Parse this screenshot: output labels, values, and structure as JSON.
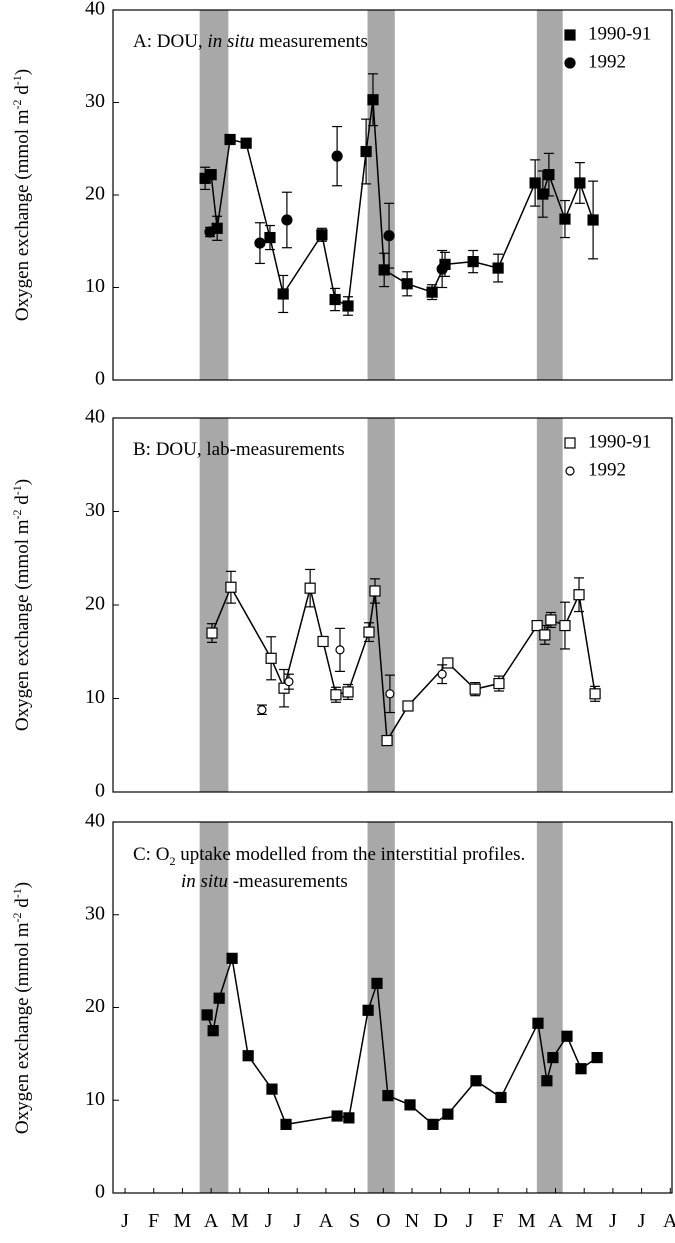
{
  "chart_data": [
    {
      "type": "line",
      "title": [
        "A: DOU, ",
        "in situ",
        " measurements"
      ],
      "y_label": [
        "Oxygen exchange (mmol m",
        "-2",
        " d",
        "-1",
        ")"
      ],
      "xlim": [
        -0.42,
        19.06
      ],
      "ylim": [
        0,
        40
      ],
      "yticks": [
        0,
        10,
        20,
        30,
        40
      ],
      "shaded_spans": [
        [
          2.6,
          3.6
        ],
        [
          8.45,
          9.4
        ],
        [
          14.35,
          15.25
        ]
      ],
      "shade_color": "#a8a8a8",
      "legend": "upper right",
      "series": [
        {
          "name": "1990-91",
          "color": "#000000",
          "marker": "square",
          "filled": true,
          "line": true,
          "x": [
            2.79,
            3.0,
            3.21,
            3.66,
            4.22,
            5.05,
            5.51,
            6.86,
            7.32,
            7.77,
            8.4,
            8.64,
            9.03,
            9.83,
            10.7,
            11.15,
            12.13,
            13.0,
            14.29,
            14.56,
            14.77,
            15.33,
            15.85,
            16.31
          ],
          "values": [
            21.8,
            22.2,
            16.4,
            26.0,
            25.6,
            15.4,
            9.3,
            15.7,
            8.7,
            8.0,
            24.7,
            30.3,
            11.9,
            10.4,
            9.5,
            12.5,
            12.8,
            12.1,
            21.3,
            20.1,
            22.2,
            17.4,
            21.3,
            17.3
          ],
          "errors": [
            1.2,
            0.5,
            1.3,
            0.3,
            0.3,
            1.3,
            2.0,
            0.7,
            1.2,
            1.0,
            3.5,
            2.8,
            1.8,
            1.3,
            0.8,
            1.3,
            1.2,
            1.5,
            2.5,
            2.5,
            2.3,
            2.0,
            2.2,
            4.2
          ]
        },
        {
          "name": "1992",
          "color": "#000000",
          "marker": "circle",
          "filled": true,
          "line": false,
          "x": [
            2.96,
            4.7,
            5.64,
            7.39,
            9.2,
            11.05
          ],
          "values": [
            16.0,
            14.8,
            17.3,
            24.2,
            15.6,
            12.0
          ],
          "errors": [
            0.5,
            2.2,
            3.0,
            3.2,
            3.5,
            2.0
          ]
        }
      ]
    },
    {
      "type": "line",
      "title": [
        "B: DOU, lab-measurements"
      ],
      "y_label": [
        "Oxygen exchange (mmol m",
        "-2",
        " d",
        "-1",
        ")"
      ],
      "xlim": [
        -0.42,
        19.06
      ],
      "ylim": [
        0,
        40
      ],
      "yticks": [
        0,
        10,
        20,
        30,
        40
      ],
      "shaded_spans": [
        [
          2.6,
          3.6
        ],
        [
          8.45,
          9.4
        ],
        [
          14.35,
          15.25
        ]
      ],
      "shade_color": "#a8a8a8",
      "legend": "upper right",
      "series": [
        {
          "name": "1990-91",
          "color": "#000000",
          "marker": "square",
          "filled": false,
          "line": true,
          "x": [
            3.03,
            3.69,
            5.09,
            5.54,
            6.45,
            6.9,
            7.35,
            7.77,
            8.5,
            8.71,
            9.13,
            9.86,
            11.25,
            12.2,
            13.03,
            14.36,
            14.63,
            14.84,
            15.33,
            15.82,
            16.38
          ],
          "values": [
            17.0,
            21.9,
            14.3,
            11.1,
            21.8,
            16.1,
            10.4,
            10.7,
            17.1,
            21.5,
            5.5,
            9.2,
            13.8,
            11.0,
            11.6,
            17.8,
            16.8,
            18.4,
            17.8,
            21.1,
            10.5
          ],
          "errors": [
            1.0,
            1.7,
            2.3,
            2.0,
            2.0,
            0.5,
            0.8,
            0.8,
            1.0,
            1.3,
            0.3,
            0.3,
            0.5,
            0.7,
            0.8,
            0.5,
            1.0,
            0.8,
            2.5,
            1.8,
            0.8
          ]
        },
        {
          "name": "1992",
          "color": "#000000",
          "marker": "circle",
          "filled": false,
          "line": false,
          "x": [
            4.77,
            5.71,
            7.49,
            9.23,
            11.05
          ],
          "values": [
            8.8,
            11.8,
            15.2,
            10.5,
            12.6
          ],
          "errors": [
            0.5,
            0.8,
            2.3,
            2.0,
            1.0
          ]
        }
      ]
    },
    {
      "type": "line",
      "title": [
        "C: O",
        "2",
        " uptake modelled from the interstitial profiles.",
        "in situ",
        " -measurements"
      ],
      "y_label": [
        "Oxygen exchange (mmol m",
        "-2",
        " d",
        "-1",
        ")"
      ],
      "xlim": [
        -0.42,
        19.06
      ],
      "ylim": [
        0,
        40
      ],
      "yticks": [
        0,
        10,
        20,
        30,
        40
      ],
      "xticks": [
        {
          "value": 0,
          "label": "J"
        },
        {
          "value": 1,
          "label": "F"
        },
        {
          "value": 2,
          "label": "M"
        },
        {
          "value": 3,
          "label": "A"
        },
        {
          "value": 4,
          "label": "M"
        },
        {
          "value": 5,
          "label": "J"
        },
        {
          "value": 6,
          "label": "J"
        },
        {
          "value": 7,
          "label": "A"
        },
        {
          "value": 8,
          "label": "S"
        },
        {
          "value": 9,
          "label": "O"
        },
        {
          "value": 10,
          "label": "N"
        },
        {
          "value": 11,
          "label": "D"
        },
        {
          "value": 12,
          "label": "J"
        },
        {
          "value": 13,
          "label": "F"
        },
        {
          "value": 14,
          "label": "M"
        },
        {
          "value": 15,
          "label": "A"
        },
        {
          "value": 16,
          "label": "M"
        },
        {
          "value": 17,
          "label": "J"
        },
        {
          "value": 18,
          "label": "J"
        },
        {
          "value": 19,
          "label": "A"
        }
      ],
      "shaded_spans": [
        [
          2.6,
          3.6
        ],
        [
          8.45,
          9.4
        ],
        [
          14.35,
          15.25
        ]
      ],
      "shade_color": "#a8a8a8",
      "series": [
        {
          "color": "#000000",
          "marker": "square",
          "filled": true,
          "line": true,
          "x": [
            2.86,
            3.07,
            3.28,
            3.73,
            4.29,
            5.12,
            5.61,
            7.39,
            7.8,
            8.47,
            8.78,
            9.16,
            9.93,
            10.73,
            11.25,
            12.23,
            13.1,
            14.39,
            14.7,
            14.91,
            15.4,
            15.89,
            16.45
          ],
          "values": [
            19.2,
            17.5,
            21.0,
            25.3,
            14.8,
            11.2,
            7.4,
            8.3,
            8.1,
            19.7,
            22.6,
            10.5,
            9.5,
            7.4,
            8.5,
            12.1,
            10.3,
            18.3,
            12.1,
            14.6,
            16.9,
            13.4,
            14.6
          ]
        }
      ]
    }
  ]
}
